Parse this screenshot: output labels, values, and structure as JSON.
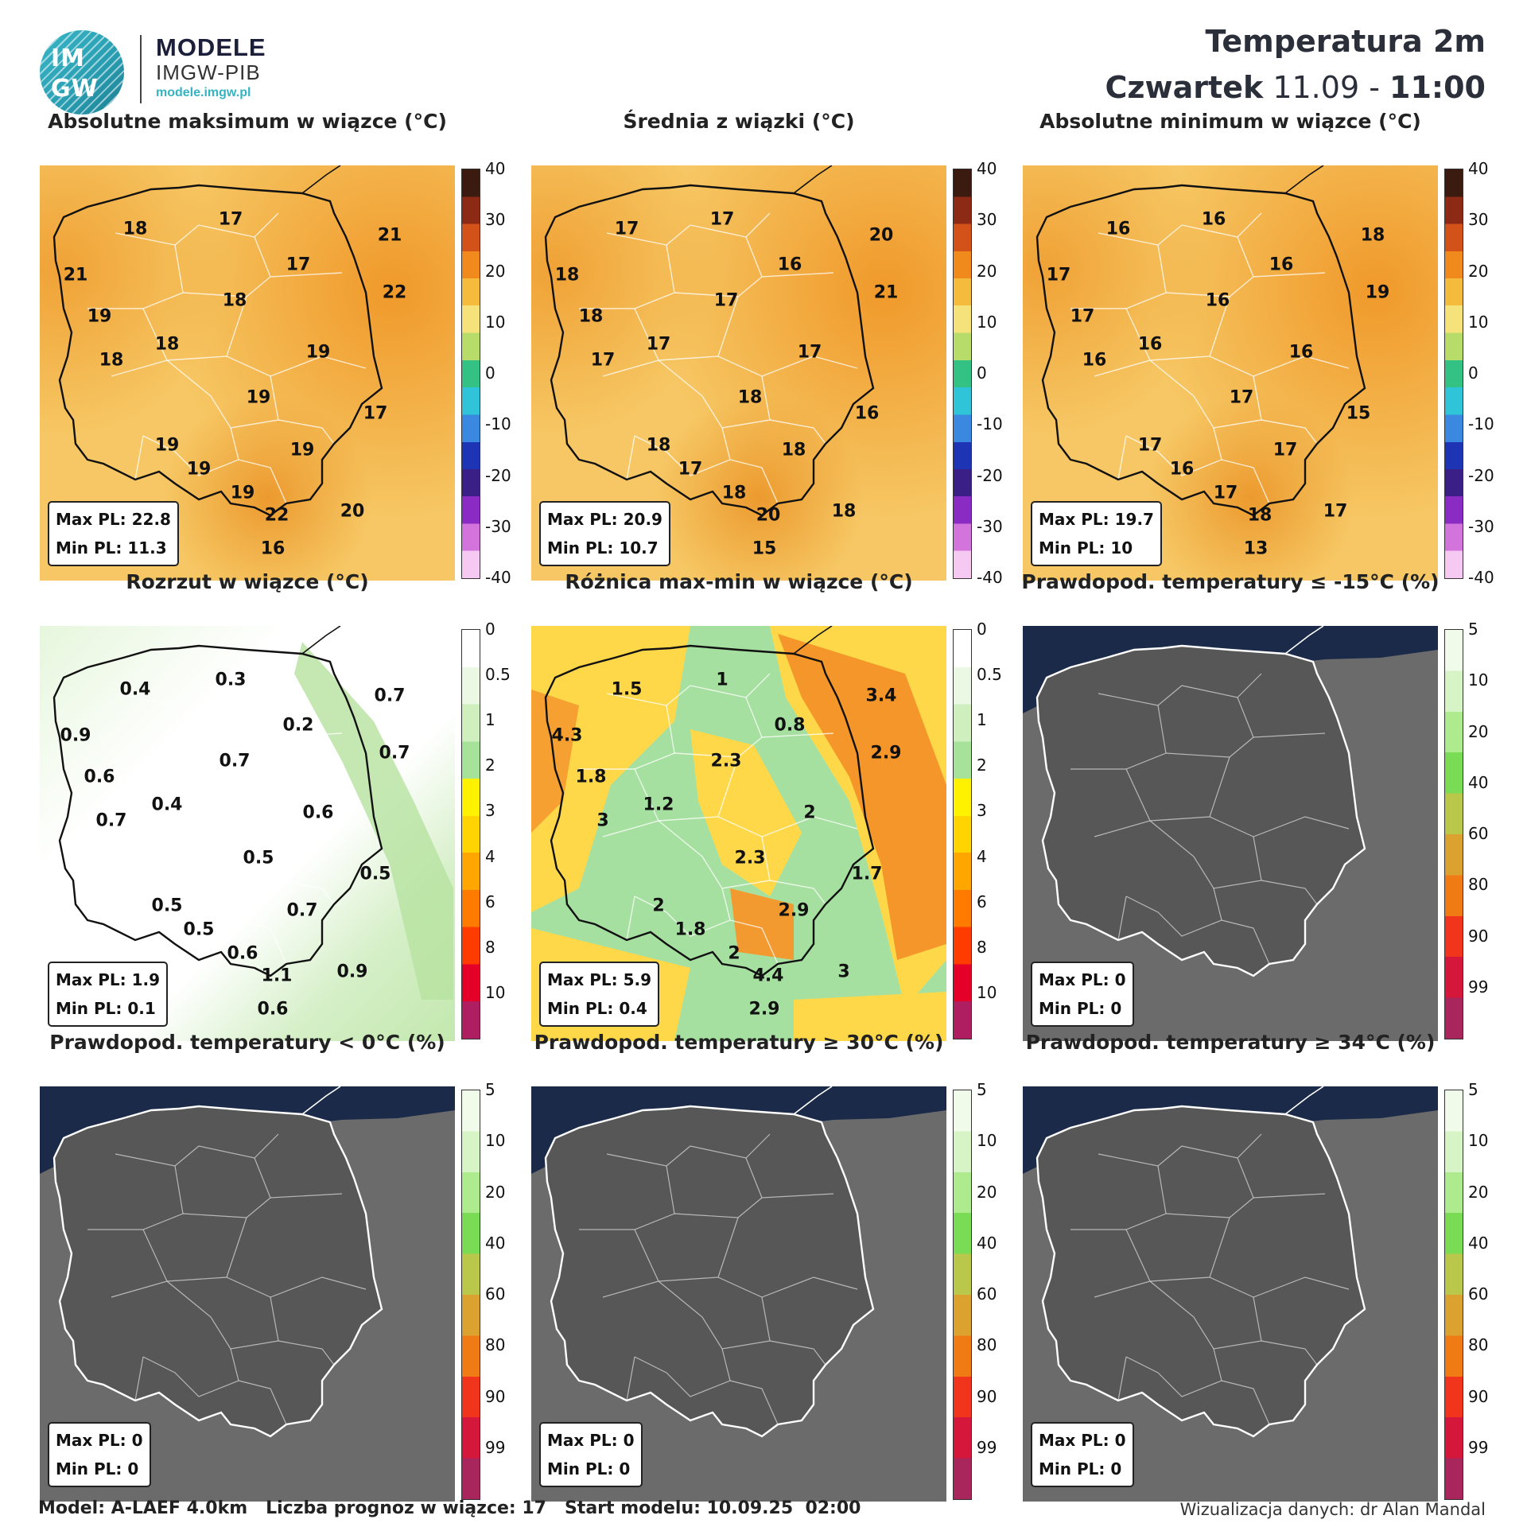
{
  "header": {
    "logo_top": "IM",
    "logo_bottom": "GW",
    "brand_name": "MODELE",
    "brand_sub": "IMGW-PIB",
    "brand_url": "modele.imgw.pl",
    "title": "Temperatura 2m",
    "day": "Czwartek",
    "date": "11.09",
    "sep": "-",
    "time": "11:00"
  },
  "panels": [
    {
      "title": "Absolutne maksimum w wiązce (°C)",
      "type": "temp",
      "max": "Max PL: 22.8",
      "min": "Min PL: 11.3",
      "values": [
        "18",
        "17",
        "21",
        "21",
        "17",
        "22",
        "19",
        "18",
        "18",
        "19",
        "18",
        "19",
        "19",
        "17",
        "19",
        "19",
        "19",
        "22",
        "20",
        "16"
      ]
    },
    {
      "title": "Średnia z wiązki (°C)",
      "type": "temp",
      "max": "Max PL: 20.9",
      "min": "Min PL: 10.7",
      "values": [
        "17",
        "17",
        "20",
        "18",
        "16",
        "21",
        "18",
        "17",
        "17",
        "17",
        "17",
        "18",
        "18",
        "16",
        "18",
        "17",
        "18",
        "20",
        "18",
        "15"
      ]
    },
    {
      "title": "Absolutne minimum w wiązce (°C)",
      "type": "temp",
      "max": "Max PL: 19.7",
      "min": "Min PL: 10",
      "values": [
        "16",
        "16",
        "18",
        "17",
        "16",
        "19",
        "17",
        "16",
        "16",
        "16",
        "16",
        "17",
        "17",
        "15",
        "17",
        "16",
        "17",
        "18",
        "17",
        "13"
      ]
    },
    {
      "title": "Rozrzut w wiązce (°C)",
      "type": "spread",
      "max": "Max PL: 1.9",
      "min": "Min PL: 0.1",
      "values": [
        "0.4",
        "0.3",
        "0.7",
        "0.9",
        "0.2",
        "0.7",
        "0.6",
        "0.7",
        "0.4",
        "0.6",
        "0.7",
        "0.5",
        "0.5",
        "0.5",
        "0.7",
        "0.5",
        "0.6",
        "1.1",
        "0.9",
        "0.6"
      ]
    },
    {
      "title": "Różnica max-min w wiązce (°C)",
      "type": "diff",
      "max": "Max PL: 5.9",
      "min": "Min PL: 0.4",
      "values": [
        "1.5",
        "1",
        "3.4",
        "4.3",
        "0.8",
        "2.9",
        "1.8",
        "2.3",
        "1.2",
        "2",
        "3",
        "2.3",
        "2",
        "1.7",
        "2.9",
        "1.8",
        "2",
        "4.4",
        "3",
        "2.9"
      ]
    },
    {
      "title": "Prawdopod. temperatury ≤ -15°C (%)",
      "type": "prob",
      "max": "Max PL: 0",
      "min": "Min PL: 0",
      "values": []
    },
    {
      "title": "Prawdopod. temperatury < 0°C (%)",
      "type": "prob",
      "max": "Max PL: 0",
      "min": "Min PL: 0",
      "values": []
    },
    {
      "title": "Prawdopod. temperatury ≥ 30°C (%)",
      "type": "prob",
      "max": "Max PL: 0",
      "min": "Min PL: 0",
      "values": []
    },
    {
      "title": "Prawdopod. temperatury ≥ 34°C (%)",
      "type": "prob",
      "max": "Max PL: 0",
      "min": "Min PL: 0",
      "values": []
    }
  ],
  "colorbars": {
    "temp": {
      "ticks": [
        "40",
        "30",
        "20",
        "10",
        "0",
        "-10",
        "-20",
        "-30",
        "-40"
      ],
      "colors": [
        "#3b1a10",
        "#8c2a16",
        "#d2521a",
        "#f08a1c",
        "#f4bb3c",
        "#f6e27a",
        "#b8dc6a",
        "#34c184",
        "#2fc4d8",
        "#3a88e0",
        "#1d35b4",
        "#3a1f86",
        "#8a2bc4",
        "#d274dc",
        "#f5c9f1"
      ]
    },
    "spread": {
      "ticks": [
        "0",
        "0.5",
        "1",
        "2",
        "3",
        "4",
        "6",
        "8",
        "10"
      ],
      "colors": [
        "#ffffff",
        "#ebf8e3",
        "#cfefbf",
        "#a6e29a",
        "#fff200",
        "#ffd400",
        "#ffa600",
        "#ff7b00",
        "#ff3c00",
        "#e5002a",
        "#b01e62"
      ]
    },
    "prob": {
      "ticks": [
        "5",
        "10",
        "20",
        "40",
        "60",
        "80",
        "90",
        "99"
      ],
      "colors": [
        "#f1fbe9",
        "#d6f4c5",
        "#aeea8e",
        "#7adc55",
        "#b9c84a",
        "#dca22f",
        "#f07a14",
        "#f0351c",
        "#d6173c",
        "#a8265c"
      ]
    }
  },
  "footer": {
    "left": "Model: A-LAEF 4.0km   Liczba prognoz w wiązce: 17   Start modelu: 10.09.25  02:00",
    "right": "Wizualizacja danych: dr Alan Mandal"
  },
  "colors": {
    "sea_dark": "#1c2b4a",
    "land_dark": "#6a6a6a",
    "temp_base": "#f7c860",
    "temp_warm": "#f09a2a"
  }
}
